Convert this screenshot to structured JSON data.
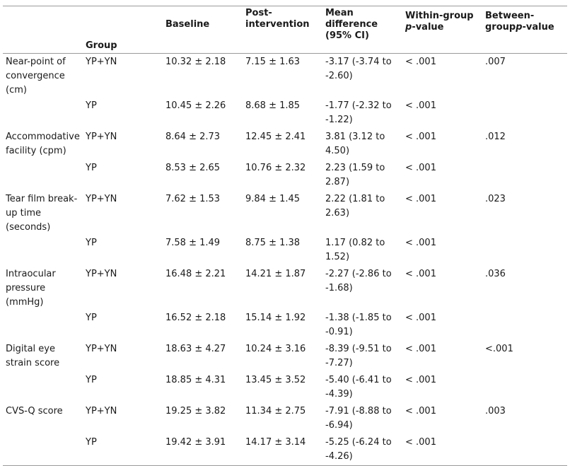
{
  "headers": {
    "measure": "",
    "group": "Group",
    "baseline": "Baseline",
    "post": "Post-intervention",
    "mean_diff": "Mean difference (95% CI)",
    "within_prefix": "Within-group ",
    "within_p": "p",
    "within_suffix": "-value",
    "between_prefix": "Between-group",
    "between_p": "p",
    "between_suffix": "-value"
  },
  "rows": [
    {
      "measure": "Near-point of convergence (cm)",
      "group": "YP+YN",
      "baseline": "10.32 ± 2.18",
      "post": "7.15 ± 1.63",
      "diff": "-3.17 (-3.74 to -2.60)",
      "within": "< .001",
      "between": ".007"
    },
    {
      "measure": "",
      "group": "YP",
      "baseline": "10.45 ± 2.26",
      "post": "8.68 ± 1.85",
      "diff": "-1.77 (-2.32 to -1.22)",
      "within": "< .001",
      "between": ""
    },
    {
      "measure": "Accommodative facility (cpm)",
      "group": "YP+YN",
      "baseline": "8.64 ± 2.73",
      "post": "12.45 ± 2.41",
      "diff": "3.81 (3.12 to 4.50)",
      "within": "< .001",
      "between": ".012"
    },
    {
      "measure": "",
      "group": "YP",
      "baseline": "8.53 ± 2.65",
      "post": "10.76 ± 2.32",
      "diff": "2.23 (1.59 to 2.87)",
      "within": "< .001",
      "between": ""
    },
    {
      "measure": "Tear film break-up time (seconds)",
      "group": "YP+YN",
      "baseline": "7.62 ± 1.53",
      "post": "9.84 ± 1.45",
      "diff": "2.22 (1.81 to 2.63)",
      "within": "< .001",
      "between": ".023"
    },
    {
      "measure": "",
      "group": "YP",
      "baseline": "7.58 ± 1.49",
      "post": "8.75 ± 1.38",
      "diff": "1.17 (0.82 to 1.52)",
      "within": "< .001",
      "between": ""
    },
    {
      "measure": "Intraocular pressure (mmHg)",
      "group": "YP+YN",
      "baseline": "16.48 ± 2.21",
      "post": "14.21 ± 1.87",
      "diff": "-2.27 (-2.86 to -1.68)",
      "within": "< .001",
      "between": ".036"
    },
    {
      "measure": "",
      "group": "YP",
      "baseline": "16.52 ± 2.18",
      "post": "15.14 ± 1.92",
      "diff": "-1.38 (-1.85 to -0.91)",
      "within": "< .001",
      "between": ""
    },
    {
      "measure": "Digital eye strain score",
      "group": "YP+YN",
      "baseline": "18.63 ± 4.27",
      "post": "10.24 ± 3.16",
      "diff": "-8.39 (-9.51 to -7.27)",
      "within": "< .001",
      "between": "<.001"
    },
    {
      "measure": "",
      "group": "YP",
      "baseline": "18.85 ± 4.31",
      "post": "13.45 ± 3.52",
      "diff": "-5.40 (-6.41 to -4.39)",
      "within": "< .001",
      "between": ""
    },
    {
      "measure": "CVS-Q score",
      "group": "YP+YN",
      "baseline": "19.25 ± 3.82",
      "post": "11.34 ± 2.75",
      "diff": "-7.91 (-8.88 to -6.94)",
      "within": "< .001",
      "between": ".003"
    },
    {
      "measure": "",
      "group": "YP",
      "baseline": "19.42 ± 3.91",
      "post": "14.17 ± 3.14",
      "diff": "-5.25 (-6.24 to -4.26)",
      "within": "< .001",
      "between": ""
    }
  ]
}
